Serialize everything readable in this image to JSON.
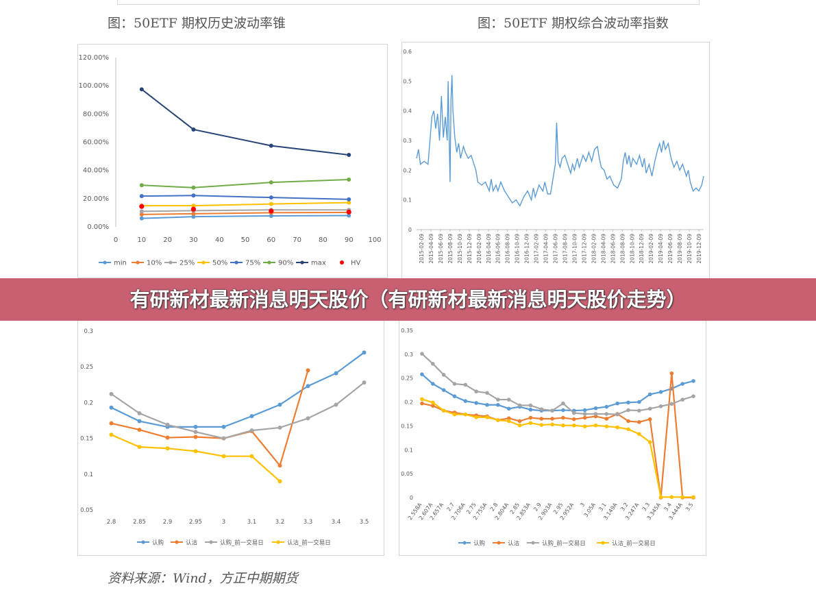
{
  "headline": "有研新材最新消息明天股价（有研新材最新消息明天股价走势）",
  "source_note": "资料来源：Wind，方正中期期货",
  "chart_data": [
    {
      "type": "line",
      "title": "图：50ETF 期权历史波动率锥",
      "x": [
        10,
        30,
        60,
        90
      ],
      "x_ticks": [
        0,
        10,
        20,
        30,
        40,
        50,
        60,
        70,
        80,
        90,
        100
      ],
      "xlim": [
        0,
        100
      ],
      "ylim": [
        0,
        1.2
      ],
      "y_ticks": [
        0,
        0.2,
        0.4,
        0.6,
        0.8,
        1.0,
        1.2
      ],
      "y_tick_labels": [
        "0.00%",
        "20.00%",
        "40.00%",
        "60.00%",
        "80.00%",
        "100.00%",
        "120.00%"
      ],
      "legend_position": "bottom",
      "series": [
        {
          "name": "min",
          "color": "#5b9bd5",
          "values": [
            0.06,
            0.072,
            0.078,
            0.08
          ]
        },
        {
          "name": "10%",
          "color": "#ed7d31",
          "values": [
            0.088,
            0.093,
            0.1,
            0.102
          ]
        },
        {
          "name": "25%",
          "color": "#a5a5a5",
          "values": [
            0.11,
            0.115,
            0.12,
            0.12
          ]
        },
        {
          "name": "50%",
          "color": "#ffc000",
          "values": [
            0.15,
            0.15,
            0.162,
            0.172
          ]
        },
        {
          "name": "75%",
          "color": "#4472c4",
          "values": [
            0.218,
            0.222,
            0.208,
            0.195
          ]
        },
        {
          "name": "90%",
          "color": "#70ad47",
          "values": [
            0.295,
            0.278,
            0.315,
            0.335
          ]
        },
        {
          "name": "max",
          "color": "#264478",
          "values": [
            0.975,
            0.69,
            0.575,
            0.51
          ]
        }
      ],
      "points": {
        "name": "HV",
        "color": "#ff0000",
        "x": [
          10,
          30,
          60,
          90
        ],
        "values": [
          0.145,
          0.125,
          0.112,
          0.105
        ]
      }
    },
    {
      "type": "line",
      "title": "图：50ETF 期权综合波动率指数",
      "x_tick_labels": [
        "2015-02-09",
        "2015-04-09",
        "2015-06-09",
        "2015-08-09",
        "2015-10-09",
        "2015-12-09",
        "2016-02-09",
        "2016-04-09",
        "2016-06-09",
        "2016-08-09",
        "2016-10-09",
        "2016-12-09",
        "2017-02-09",
        "2017-04-09",
        "2017-06-09",
        "2017-08-09",
        "2017-10-09",
        "2017-12-09",
        "2018-02-09",
        "2018-04-09",
        "2018-06-09",
        "2018-08-09",
        "2018-10-09",
        "2018-12-09",
        "2019-02-09",
        "2019-04-09",
        "2019-06-09",
        "2019-08-09",
        "2019-10-09",
        "2019-12-09"
      ],
      "ylim": [
        0,
        0.6
      ],
      "y_ticks": [
        0,
        0.1,
        0.2,
        0.3,
        0.4,
        0.5,
        0.6
      ],
      "y_tick_labels": [
        "0",
        "0.1",
        "0.2",
        "0.3",
        "0.4",
        "0.5",
        "0.6"
      ],
      "color": "#5b9bd5",
      "keypoints": [
        [
          0.0,
          0.24
        ],
        [
          0.01,
          0.27
        ],
        [
          0.02,
          0.22
        ],
        [
          0.04,
          0.23
        ],
        [
          0.06,
          0.22
        ],
        [
          0.07,
          0.3
        ],
        [
          0.08,
          0.38
        ],
        [
          0.09,
          0.4
        ],
        [
          0.1,
          0.34
        ],
        [
          0.11,
          0.39
        ],
        [
          0.12,
          0.3
        ],
        [
          0.13,
          0.45
        ],
        [
          0.14,
          0.31
        ],
        [
          0.15,
          0.38
        ],
        [
          0.16,
          0.3
        ],
        [
          0.165,
          0.5
        ],
        [
          0.17,
          0.32
        ],
        [
          0.175,
          0.16
        ],
        [
          0.18,
          0.44
        ],
        [
          0.185,
          0.52
        ],
        [
          0.19,
          0.4
        ],
        [
          0.2,
          0.31
        ],
        [
          0.21,
          0.26
        ],
        [
          0.22,
          0.29
        ],
        [
          0.23,
          0.24
        ],
        [
          0.245,
          0.28
        ],
        [
          0.255,
          0.26
        ],
        [
          0.27,
          0.24
        ],
        [
          0.285,
          0.25
        ],
        [
          0.3,
          0.22
        ],
        [
          0.31,
          0.2
        ],
        [
          0.32,
          0.16
        ],
        [
          0.34,
          0.15
        ],
        [
          0.36,
          0.16
        ],
        [
          0.38,
          0.13
        ],
        [
          0.39,
          0.17
        ],
        [
          0.4,
          0.13
        ],
        [
          0.415,
          0.15
        ],
        [
          0.425,
          0.13
        ],
        [
          0.44,
          0.16
        ],
        [
          0.46,
          0.13
        ],
        [
          0.48,
          0.11
        ],
        [
          0.5,
          0.09
        ],
        [
          0.52,
          0.1
        ],
        [
          0.54,
          0.08
        ],
        [
          0.56,
          0.11
        ],
        [
          0.58,
          0.13
        ],
        [
          0.6,
          0.1
        ],
        [
          0.61,
          0.14
        ],
        [
          0.62,
          0.11
        ],
        [
          0.64,
          0.15
        ],
        [
          0.66,
          0.13
        ],
        [
          0.67,
          0.16
        ],
        [
          0.685,
          0.12
        ],
        [
          0.7,
          0.12
        ],
        [
          0.715,
          0.18
        ],
        [
          0.725,
          0.22
        ],
        [
          0.732,
          0.36
        ],
        [
          0.74,
          0.23
        ],
        [
          0.75,
          0.21
        ],
        [
          0.76,
          0.24
        ],
        [
          0.775,
          0.25
        ],
        [
          0.79,
          0.22
        ],
        [
          0.805,
          0.19
        ],
        [
          0.815,
          0.22
        ],
        [
          0.825,
          0.2
        ],
        [
          0.84,
          0.24
        ],
        [
          0.85,
          0.21
        ],
        [
          0.87,
          0.25
        ],
        [
          0.885,
          0.23
        ],
        [
          0.9,
          0.26
        ],
        [
          0.915,
          0.23
        ],
        [
          0.93,
          0.27
        ],
        [
          0.945,
          0.28
        ],
        [
          0.955,
          0.24
        ],
        [
          0.965,
          0.21
        ],
        [
          0.98,
          0.2
        ],
        [
          0.995,
          0.17
        ],
        [
          1.01,
          0.18
        ],
        [
          1.03,
          0.15
        ],
        [
          1.05,
          0.14
        ],
        [
          1.07,
          0.17
        ],
        [
          1.08,
          0.23
        ],
        [
          1.09,
          0.26
        ],
        [
          1.1,
          0.22
        ],
        [
          1.11,
          0.25
        ],
        [
          1.12,
          0.21
        ],
        [
          1.13,
          0.24
        ],
        [
          1.15,
          0.22
        ],
        [
          1.165,
          0.25
        ],
        [
          1.18,
          0.21
        ],
        [
          1.19,
          0.24
        ],
        [
          1.2,
          0.19
        ],
        [
          1.215,
          0.22
        ],
        [
          1.23,
          0.18
        ],
        [
          1.245,
          0.23
        ],
        [
          1.26,
          0.27
        ],
        [
          1.27,
          0.29
        ],
        [
          1.28,
          0.26
        ],
        [
          1.29,
          0.3
        ],
        [
          1.3,
          0.27
        ],
        [
          1.315,
          0.29
        ],
        [
          1.33,
          0.24
        ],
        [
          1.345,
          0.21
        ],
        [
          1.36,
          0.23
        ],
        [
          1.375,
          0.2
        ],
        [
          1.39,
          0.22
        ],
        [
          1.41,
          0.18
        ],
        [
          1.42,
          0.2
        ],
        [
          1.43,
          0.16
        ],
        [
          1.445,
          0.13
        ],
        [
          1.46,
          0.14
        ],
        [
          1.475,
          0.13
        ],
        [
          1.49,
          0.15
        ],
        [
          1.5,
          0.18
        ]
      ]
    },
    {
      "type": "line",
      "title": "",
      "categories": [
        "2.8",
        "2.85",
        "2.9",
        "2.95",
        "3",
        "3.1",
        "3.2",
        "3.3",
        "3.4",
        "3.5"
      ],
      "ylim": [
        0.05,
        0.3
      ],
      "y_ticks": [
        0.05,
        0.1,
        0.15,
        0.2,
        0.25,
        0.3
      ],
      "y_tick_labels": [
        "0.05",
        "0.1",
        "0.15",
        "0.2",
        "0.25",
        "0.3"
      ],
      "legend_position": "bottom",
      "series": [
        {
          "name": "认购",
          "color": "#5b9bd5",
          "values": [
            0.193,
            0.174,
            0.166,
            0.166,
            0.166,
            0.181,
            0.197,
            0.223,
            0.241,
            0.27
          ]
        },
        {
          "name": "认沽",
          "color": "#ed7d31",
          "values": [
            0.171,
            0.162,
            0.151,
            0.152,
            0.15,
            0.16,
            0.112,
            0.245,
            null,
            null
          ]
        },
        {
          "name": "认购_前一交易日",
          "color": "#a5a5a5",
          "values": [
            0.212,
            0.185,
            0.169,
            0.159,
            0.15,
            0.161,
            0.165,
            0.178,
            0.197,
            0.228
          ]
        },
        {
          "name": "认沽_前一交易日",
          "color": "#ffc000",
          "values": [
            0.155,
            0.138,
            0.136,
            0.132,
            0.125,
            0.125,
            0.09,
            null,
            null,
            null
          ]
        }
      ]
    },
    {
      "type": "line",
      "title": "",
      "categories": [
        "2.558A",
        "2.607A",
        "2.657A",
        "2.7",
        "2.706A",
        "2.75",
        "2.755A",
        "2.8",
        "2.804A",
        "2.85",
        "2.853A",
        "2.9",
        "2.903A",
        "2.95",
        "2.952A",
        "3",
        "3.05A",
        "3.1",
        "3.149A",
        "3.2",
        "3.247A",
        "3.3",
        "3.345A",
        "3.4",
        "3.444A",
        "3.5"
      ],
      "ylim": [
        0,
        0.35
      ],
      "y_ticks": [
        0,
        0.05,
        0.1,
        0.15,
        0.2,
        0.25,
        0.3,
        0.35
      ],
      "y_tick_labels": [
        "0",
        "0.05",
        "0.1",
        "0.15",
        "0.2",
        "0.25",
        "0.3",
        "0.35"
      ],
      "legend_position": "bottom",
      "series": [
        {
          "name": "认购",
          "color": "#5b9bd5",
          "values": [
            0.258,
            0.238,
            0.225,
            0.212,
            0.202,
            0.198,
            0.194,
            0.194,
            0.186,
            0.19,
            0.184,
            0.182,
            0.182,
            0.183,
            0.182,
            0.183,
            0.187,
            0.19,
            0.197,
            0.199,
            0.2,
            0.216,
            0.221,
            0.228,
            0.238,
            0.244
          ]
        },
        {
          "name": "认沽",
          "color": "#ed7d31",
          "values": [
            0.197,
            0.192,
            0.182,
            0.178,
            0.174,
            0.172,
            0.17,
            0.162,
            0.166,
            0.16,
            0.167,
            0.165,
            0.165,
            0.167,
            0.164,
            0.167,
            0.17,
            0.165,
            0.175,
            0.16,
            0.158,
            0.164,
            0.0,
            0.26,
            0.0,
            0.0
          ]
        },
        {
          "name": "认购_前一交易日",
          "color": "#a5a5a5",
          "values": [
            0.301,
            0.28,
            0.257,
            0.238,
            0.236,
            0.222,
            0.219,
            0.205,
            0.205,
            0.193,
            0.193,
            0.185,
            0.182,
            0.197,
            0.177,
            0.175,
            0.175,
            0.175,
            0.174,
            0.183,
            0.182,
            0.186,
            0.191,
            0.196,
            0.205,
            0.212
          ]
        },
        {
          "name": "认沽_前一交易日",
          "color": "#ffc000",
          "values": [
            0.206,
            0.199,
            0.182,
            0.174,
            0.174,
            0.168,
            0.168,
            0.162,
            0.16,
            0.151,
            0.156,
            0.152,
            0.153,
            0.151,
            0.151,
            0.149,
            0.151,
            0.149,
            0.147,
            0.143,
            0.133,
            0.116,
            0.001,
            0.001,
            0.001,
            0.001
          ]
        }
      ]
    }
  ]
}
